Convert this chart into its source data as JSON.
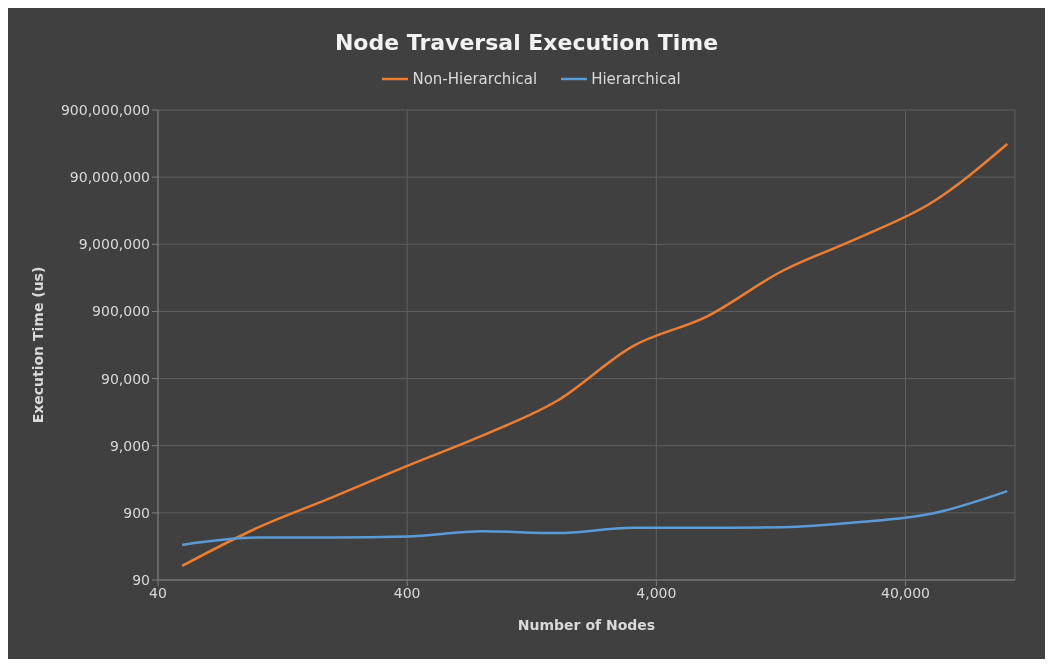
{
  "chart_data": {
    "type": "line",
    "title": "Node Traversal Execution Time",
    "xlabel": "Number of Nodes",
    "ylabel": "Execution Time (us)",
    "x": [
      50,
      100,
      200,
      400,
      800,
      1600,
      3200,
      6400,
      12800,
      25600,
      51200,
      102400
    ],
    "series": [
      {
        "name": "Non-Hierarchical",
        "color": "#ed7d31",
        "values": [
          146,
          536,
          1530,
          4500,
          12700,
          42000,
          270000,
          760000,
          3600000,
          11000000,
          38000000,
          280000000
        ]
      },
      {
        "name": "Hierarchical",
        "color": "#5b9bd5",
        "values": [
          300,
          385,
          385,
          400,
          480,
          450,
          540,
          540,
          550,
          650,
          880,
          1900
        ]
      }
    ],
    "log": "xy",
    "xlim": [
      40,
      110000
    ],
    "xticks": [
      40,
      400,
      {
        "value": 4000,
        "label": "4,000"
      },
      {
        "value": 40000,
        "label": "40,000"
      }
    ],
    "ylim": [
      90,
      900000000
    ],
    "yticks": [
      90,
      900,
      {
        "value": 9000,
        "label": "9,000"
      },
      {
        "value": 90000,
        "label": "90,000"
      },
      {
        "value": 900000,
        "label": "900,000"
      },
      {
        "value": 9000000,
        "label": "9,000,000"
      },
      {
        "value": 90000000,
        "label": "90,000,000"
      },
      {
        "value": 900000000,
        "label": "900,000,000"
      }
    ],
    "grid": true,
    "legend": "top",
    "marker": "none",
    "line_style": "solid"
  }
}
